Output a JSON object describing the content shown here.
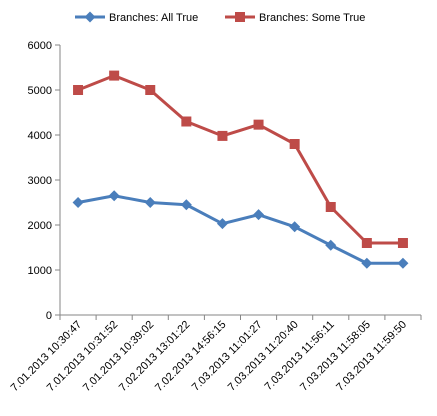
{
  "chart_data": {
    "type": "line",
    "title": "",
    "xlabel": "",
    "ylabel": "",
    "categories": [
      "7.01.2013 10:30:47",
      "7.01.2013 10:31:52",
      "7.01.2013 10:39:02",
      "7.02.2013 13:01:22",
      "7.02.2013 14:56:15",
      "7.03.2013 11:01:27",
      "7.03.2013 11:20:40",
      "7.03.2013 11:56:11",
      "7.03.2013 11:58:05",
      "7.03.2013 11:59:50"
    ],
    "series": [
      {
        "name": "Branches: All True",
        "color": "#4a7ebb",
        "marker": "diamond",
        "values": [
          2500,
          2650,
          2500,
          2450,
          2030,
          2230,
          1960,
          1550,
          1150,
          1150
        ]
      },
      {
        "name": "Branches: Some True",
        "color": "#be4b48",
        "marker": "square",
        "values": [
          5000,
          5320,
          5000,
          4300,
          3980,
          4230,
          3800,
          2400,
          1600,
          1600
        ]
      }
    ],
    "yticks": [
      "0",
      "1000",
      "2000",
      "3000",
      "4000",
      "5000",
      "6000"
    ],
    "ylim": [
      0,
      6000
    ],
    "grid": false,
    "legend": "top"
  }
}
